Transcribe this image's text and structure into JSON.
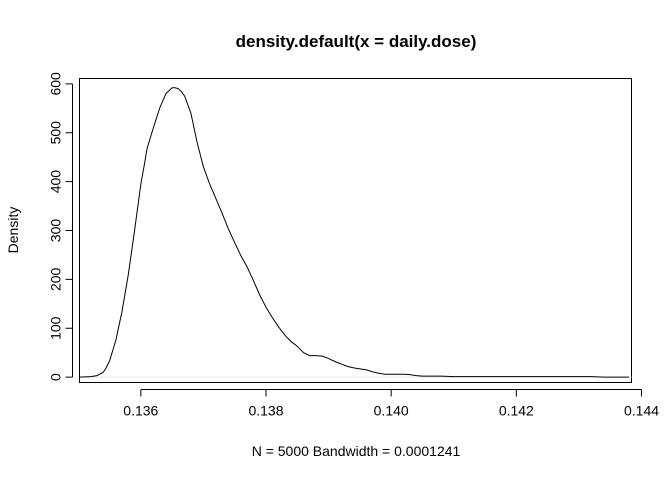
{
  "chart_data": {
    "type": "line",
    "title": "density.default(x = daily.dose)",
    "xlabel": "N = 5000   Bandwidth = 0.0001241",
    "ylabel": "Density",
    "xlim": [
      0.13502,
      0.14384
    ],
    "ylim": [
      -11,
      611
    ],
    "x_ticks": [
      0.136,
      0.138,
      0.14,
      0.142,
      0.144
    ],
    "x_tick_labels": [
      "0.136",
      "0.138",
      "0.140",
      "0.142",
      "0.144"
    ],
    "y_ticks": [
      0,
      100,
      200,
      300,
      400,
      500,
      600
    ],
    "y_tick_labels": [
      "0",
      "100",
      "200",
      "300",
      "400",
      "500",
      "600"
    ],
    "grid": false,
    "legend": "none",
    "series": [
      {
        "x": [
          0.13502,
          0.1352,
          0.1353,
          0.1354,
          0.13545,
          0.1355,
          0.1356,
          0.1357,
          0.1358,
          0.1359,
          0.136,
          0.13605,
          0.1361,
          0.1362,
          0.1363,
          0.1364,
          0.1365,
          0.13655,
          0.1366,
          0.13665,
          0.1367,
          0.1368,
          0.1369,
          0.137,
          0.1371,
          0.1372,
          0.1373,
          0.1374,
          0.1375,
          0.1376,
          0.1377,
          0.1378,
          0.1379,
          0.138,
          0.1381,
          0.1382,
          0.1383,
          0.1384,
          0.1385,
          0.1386,
          0.1387,
          0.1388,
          0.1389,
          0.139,
          0.1391,
          0.1392,
          0.1393,
          0.1394,
          0.1395,
          0.1396,
          0.1397,
          0.1398,
          0.1399,
          0.14,
          0.1401,
          0.1402,
          0.1403,
          0.1404,
          0.1405,
          0.1406,
          0.1408,
          0.141,
          0.1412,
          0.1414,
          0.1416,
          0.1418,
          0.142,
          0.1422,
          0.1424,
          0.1426,
          0.1428,
          0.143,
          0.1432,
          0.1434,
          0.1436,
          0.1438
        ],
        "y": [
          0,
          1,
          3,
          10,
          20,
          33,
          75,
          135,
          210,
          300,
          395,
          430,
          468,
          510,
          550,
          580,
          592,
          592,
          590,
          584,
          575,
          540,
          480,
          430,
          395,
          365,
          335,
          303,
          275,
          248,
          225,
          197,
          168,
          143,
          122,
          103,
          86,
          73,
          63,
          50,
          44,
          44,
          43,
          38,
          32,
          27,
          22,
          19,
          17,
          15,
          11,
          8,
          6,
          6,
          6,
          6,
          5,
          3,
          2,
          2,
          2,
          1,
          1,
          1,
          1,
          1,
          1,
          1,
          1,
          1,
          1,
          1,
          1,
          0,
          0,
          0
        ]
      }
    ]
  }
}
